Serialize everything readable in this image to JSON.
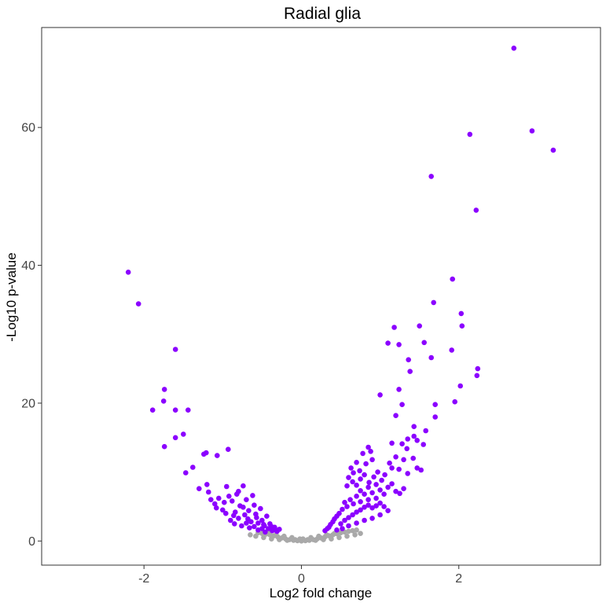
{
  "chart_data": {
    "type": "scatter",
    "title": "Radial glia",
    "xlabel": "Log2 fold change",
    "ylabel": "-Log10 p-value",
    "xlim": [
      -3.3,
      3.8
    ],
    "ylim": [
      -3.5,
      74.5
    ],
    "xticks": [
      -2,
      0,
      2
    ],
    "yticks": [
      0,
      20,
      40,
      60
    ],
    "grid": false,
    "legend": "none",
    "colors": {
      "significant": "#8B00FF",
      "not_significant": "#A9A9A9"
    },
    "series": [
      {
        "values": [
          [
            2.7,
            71.5
          ],
          [
            2.93,
            59.5
          ],
          [
            3.2,
            56.7
          ],
          [
            2.14,
            59.0
          ],
          [
            1.65,
            52.9
          ],
          [
            2.22,
            48.0
          ],
          [
            -2.2,
            39.0
          ],
          [
            -2.07,
            34.4
          ],
          [
            1.92,
            38.0
          ],
          [
            1.68,
            34.6
          ],
          [
            2.03,
            33.0
          ],
          [
            2.04,
            31.2
          ],
          [
            1.5,
            31.2
          ],
          [
            1.18,
            31.0
          ],
          [
            1.1,
            28.7
          ],
          [
            1.24,
            28.5
          ],
          [
            1.56,
            28.8
          ],
          [
            1.91,
            27.7
          ],
          [
            2.24,
            25.0
          ],
          [
            2.23,
            24.0
          ],
          [
            1.36,
            26.3
          ],
          [
            1.38,
            24.6
          ],
          [
            1.65,
            26.6
          ],
          [
            2.02,
            22.5
          ],
          [
            1.24,
            22.0
          ],
          [
            1.0,
            21.2
          ],
          [
            1.95,
            20.2
          ],
          [
            1.7,
            19.8
          ],
          [
            1.7,
            18.0
          ],
          [
            1.28,
            19.8
          ],
          [
            1.2,
            18.2
          ],
          [
            1.43,
            16.6
          ],
          [
            1.58,
            16.0
          ],
          [
            1.43,
            15.2
          ],
          [
            1.35,
            14.8
          ],
          [
            1.28,
            14.1
          ],
          [
            1.47,
            14.6
          ],
          [
            1.34,
            13.4
          ],
          [
            1.15,
            14.2
          ],
          [
            1.55,
            14.0
          ],
          [
            -1.6,
            27.8
          ],
          [
            -1.74,
            22.0
          ],
          [
            -1.75,
            20.3
          ],
          [
            -1.89,
            19.0
          ],
          [
            -1.6,
            19.0
          ],
          [
            -1.44,
            19.0
          ],
          [
            -1.6,
            15.0
          ],
          [
            -1.5,
            15.5
          ],
          [
            -1.74,
            13.7
          ],
          [
            -1.38,
            10.7
          ],
          [
            -1.47,
            9.9
          ],
          [
            -1.21,
            12.8
          ],
          [
            -1.24,
            12.6
          ],
          [
            -1.07,
            12.4
          ],
          [
            -0.93,
            13.3
          ],
          [
            -1.3,
            7.6
          ],
          [
            -1.2,
            8.2
          ],
          [
            -1.18,
            7.1
          ],
          [
            -1.15,
            6.0
          ],
          [
            -1.1,
            5.4
          ],
          [
            -1.05,
            6.2
          ],
          [
            -1.08,
            4.8
          ],
          [
            -1.0,
            4.5
          ],
          [
            -0.95,
            7.9
          ],
          [
            -0.92,
            6.5
          ],
          [
            -0.88,
            5.8
          ],
          [
            -0.84,
            4.2
          ],
          [
            -0.8,
            7.2
          ],
          [
            -0.78,
            5.1
          ],
          [
            -0.74,
            8.0
          ],
          [
            -0.72,
            3.8
          ],
          [
            -0.7,
            6.0
          ],
          [
            -0.67,
            4.4
          ],
          [
            -0.64,
            2.8
          ],
          [
            -0.62,
            6.6
          ],
          [
            -0.6,
            5.2
          ],
          [
            -0.57,
            3.4
          ],
          [
            -0.55,
            2.6
          ],
          [
            -0.52,
            4.7
          ],
          [
            -0.5,
            3.0
          ],
          [
            -0.47,
            2.2
          ],
          [
            -0.44,
            3.6
          ],
          [
            -0.42,
            1.8
          ],
          [
            -0.4,
            2.5
          ],
          [
            -0.37,
            1.5
          ],
          [
            -0.34,
            2.0
          ],
          [
            -0.31,
            1.4
          ],
          [
            -0.28,
            1.7
          ],
          [
            -0.9,
            3.0
          ],
          [
            -0.85,
            2.5
          ],
          [
            -0.8,
            3.3
          ],
          [
            -0.76,
            2.2
          ],
          [
            -0.7,
            2.6
          ],
          [
            -0.66,
            1.9
          ],
          [
            -0.6,
            2.1
          ],
          [
            -0.55,
            1.6
          ],
          [
            -0.5,
            1.8
          ],
          [
            -0.46,
            1.3
          ],
          [
            -0.98,
            5.6
          ],
          [
            -0.96,
            4.0
          ],
          [
            -0.86,
            3.7
          ],
          [
            -0.82,
            6.8
          ],
          [
            -0.74,
            4.9
          ],
          [
            -0.68,
            3.2
          ],
          [
            -0.58,
            3.9
          ],
          [
            -0.48,
            2.4
          ],
          [
            -0.38,
            2.1
          ],
          [
            -0.33,
            1.6
          ],
          [
            0.58,
            8.0
          ],
          [
            0.6,
            9.2
          ],
          [
            0.63,
            10.6
          ],
          [
            0.66,
            9.9
          ],
          [
            0.7,
            11.4
          ],
          [
            0.74,
            10.2
          ],
          [
            0.78,
            12.7
          ],
          [
            0.82,
            11.2
          ],
          [
            0.85,
            13.6
          ],
          [
            0.88,
            13.0
          ],
          [
            0.9,
            11.8
          ],
          [
            0.65,
            8.6
          ],
          [
            0.7,
            8.1
          ],
          [
            0.75,
            9.0
          ],
          [
            0.8,
            9.6
          ],
          [
            0.86,
            8.5
          ],
          [
            0.92,
            9.3
          ],
          [
            0.97,
            10.0
          ],
          [
            1.02,
            8.8
          ],
          [
            1.06,
            9.6
          ],
          [
            1.12,
            11.3
          ],
          [
            1.15,
            10.6
          ],
          [
            1.2,
            12.2
          ],
          [
            1.24,
            10.4
          ],
          [
            1.3,
            11.8
          ],
          [
            1.35,
            9.8
          ],
          [
            1.42,
            12.0
          ],
          [
            1.47,
            10.6
          ],
          [
            1.52,
            10.3
          ],
          [
            1.1,
            7.8
          ],
          [
            1.15,
            8.3
          ],
          [
            1.2,
            7.2
          ],
          [
            1.25,
            6.9
          ],
          [
            1.3,
            7.6
          ],
          [
            1.05,
            6.8
          ],
          [
            1.0,
            7.4
          ],
          [
            0.95,
            6.2
          ],
          [
            0.9,
            7.0
          ],
          [
            0.85,
            6.0
          ],
          [
            0.8,
            6.8
          ],
          [
            0.75,
            5.7
          ],
          [
            0.7,
            6.5
          ],
          [
            0.66,
            5.4
          ],
          [
            0.62,
            6.0
          ],
          [
            0.58,
            5.0
          ],
          [
            0.55,
            5.6
          ],
          [
            0.52,
            4.6
          ],
          [
            0.48,
            4.0
          ],
          [
            0.45,
            3.6
          ],
          [
            0.42,
            3.2
          ],
          [
            0.4,
            2.8
          ],
          [
            0.37,
            2.4
          ],
          [
            0.35,
            2.0
          ],
          [
            0.33,
            1.8
          ],
          [
            0.3,
            1.5
          ],
          [
            0.5,
            2.5
          ],
          [
            0.55,
            3.0
          ],
          [
            0.6,
            3.4
          ],
          [
            0.65,
            3.8
          ],
          [
            0.7,
            4.2
          ],
          [
            0.75,
            4.5
          ],
          [
            0.8,
            4.9
          ],
          [
            0.85,
            5.2
          ],
          [
            0.9,
            4.8
          ],
          [
            0.95,
            5.1
          ],
          [
            1.0,
            5.5
          ],
          [
            1.05,
            5.0
          ],
          [
            1.1,
            4.4
          ],
          [
            0.6,
            2.2
          ],
          [
            0.7,
            2.6
          ],
          [
            0.8,
            3.0
          ],
          [
            0.9,
            3.3
          ],
          [
            1.0,
            3.8
          ],
          [
            0.52,
            1.8
          ],
          [
            0.45,
            1.6
          ],
          [
            0.75,
            7.3
          ],
          [
            0.85,
            7.8
          ],
          [
            0.95,
            8.2
          ]
        ]
      },
      {
        "values": [
          [
            0.0,
            0.0
          ],
          [
            0.05,
            0.05
          ],
          [
            -0.05,
            0.05
          ],
          [
            0.1,
            0.1
          ],
          [
            -0.1,
            0.1
          ],
          [
            0.15,
            0.2
          ],
          [
            -0.15,
            0.2
          ],
          [
            0.2,
            0.3
          ],
          [
            -0.2,
            0.3
          ],
          [
            0.25,
            0.45
          ],
          [
            -0.25,
            0.45
          ],
          [
            0.3,
            0.6
          ],
          [
            -0.3,
            0.6
          ],
          [
            0.35,
            0.75
          ],
          [
            -0.35,
            0.75
          ],
          [
            0.4,
            0.9
          ],
          [
            -0.4,
            0.9
          ],
          [
            0.45,
            1.05
          ],
          [
            -0.45,
            1.0
          ],
          [
            0.5,
            1.2
          ],
          [
            -0.5,
            1.1
          ],
          [
            0.55,
            1.3
          ],
          [
            -0.55,
            1.2
          ],
          [
            0.6,
            1.4
          ],
          [
            0.65,
            1.5
          ],
          [
            0.7,
            1.6
          ],
          [
            0.08,
            0.2
          ],
          [
            -0.08,
            0.2
          ],
          [
            0.18,
            0.1
          ],
          [
            -0.18,
            0.1
          ],
          [
            0.28,
            0.2
          ],
          [
            -0.28,
            0.2
          ],
          [
            0.38,
            0.3
          ],
          [
            -0.38,
            0.3
          ],
          [
            0.48,
            0.5
          ],
          [
            -0.48,
            0.5
          ],
          [
            0.58,
            0.7
          ],
          [
            -0.58,
            0.7
          ],
          [
            0.68,
            0.9
          ],
          [
            -0.65,
            0.9
          ],
          [
            0.75,
            1.1
          ],
          [
            0.12,
            0.5
          ],
          [
            -0.12,
            0.5
          ],
          [
            0.22,
            0.7
          ],
          [
            -0.22,
            0.7
          ],
          [
            0.32,
            0.9
          ],
          [
            -0.32,
            0.9
          ],
          [
            0.42,
            1.1
          ],
          [
            -0.42,
            1.2
          ],
          [
            0.02,
            0.3
          ],
          [
            -0.02,
            0.3
          ]
        ]
      }
    ]
  }
}
